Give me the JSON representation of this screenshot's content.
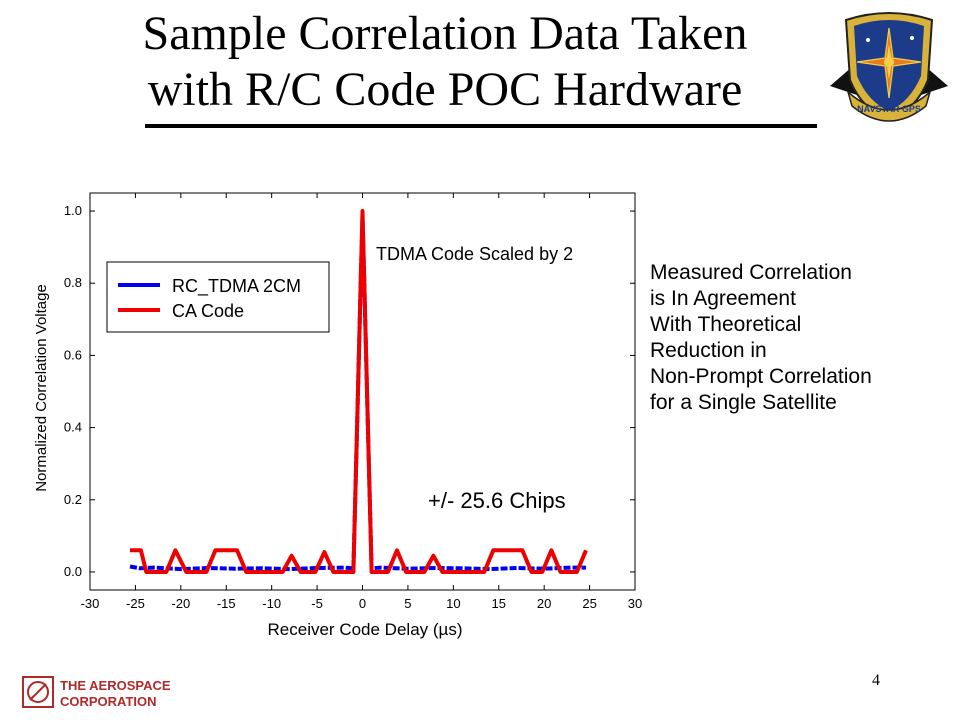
{
  "slide": {
    "title_line1": "Sample Correlation Data Taken",
    "title_line2": "with R/C Code POC Hardware",
    "side_note": [
      "Measured Correlation",
      "is In Agreement",
      "With Theoretical",
      "Reduction in",
      "Non-Prompt Correlation",
      "for a Single Satellite"
    ],
    "slide_number": "4",
    "emblem_text": "NAVSTAR GPS",
    "footer_logo": {
      "line1": "THE AEROSPACE",
      "line2": "CORPORATION"
    }
  },
  "colors": {
    "rc_tdma": "#0000ee",
    "ca_code": "#ee0000",
    "emblem_shield": "#1c3c8a",
    "emblem_gold": "#d8b23a",
    "logo_red": "#b02a2a"
  },
  "chart_data": {
    "type": "line",
    "xlabel": "Receiver Code Delay (µs)",
    "ylabel": "Normalized Correlation Voltage",
    "xlim": [
      -30,
      30
    ],
    "ylim": [
      -0.05,
      1.05
    ],
    "xticks": [
      -30,
      -25,
      -20,
      -15,
      -10,
      -5,
      0,
      5,
      10,
      15,
      20,
      25,
      30
    ],
    "yticks": [
      0.0,
      0.2,
      0.4,
      0.6,
      0.8,
      1.0
    ],
    "ytick_labels": [
      "0.0",
      "0.2",
      "0.4",
      "0.6",
      "0.8",
      "1.0"
    ],
    "grid": false,
    "legend_position": "upper-left",
    "annotations": [
      {
        "text": "TDMA Code Scaled by 2",
        "x": 0.8,
        "y": 0.88
      },
      {
        "text": "+/- 25.6 Chips",
        "x": 3.9,
        "y": 0.16
      }
    ],
    "series": [
      {
        "name": "RC_TDMA 2CM",
        "color": "#0000ee",
        "x": [
          -25.6,
          -24.5,
          -23,
          -20,
          -17,
          -14,
          -11,
          -8,
          -5,
          -2,
          -1,
          -0.6,
          -0.2,
          0,
          0.2,
          0.6,
          1,
          2,
          5,
          8,
          11,
          14,
          17,
          20,
          23,
          24.6
        ],
        "y": [
          0.015,
          0.01,
          0.012,
          0.008,
          0.011,
          0.009,
          0.01,
          0.008,
          0.011,
          0.012,
          0.01,
          0.4,
          0.8,
          0.98,
          0.8,
          0.4,
          0.01,
          0.012,
          0.009,
          0.011,
          0.01,
          0.008,
          0.011,
          0.009,
          0.012,
          0.012
        ]
      },
      {
        "name": "CA Code",
        "color": "#ee0000",
        "x": [
          -25.6,
          -24.4,
          -23.8,
          -21.6,
          -20.6,
          -19.4,
          -17.2,
          -16.2,
          -13.8,
          -12.8,
          -8.8,
          -7.8,
          -6.8,
          -5.2,
          -4.2,
          -3.2,
          -1.0,
          0.0,
          1.0,
          2.8,
          3.8,
          4.8,
          6.8,
          7.8,
          8.8,
          13.4,
          14.4,
          17.6,
          18.6,
          19.8,
          20.8,
          21.8,
          23.6,
          24.6
        ],
        "y": [
          0.06,
          0.06,
          0.0,
          0.0,
          0.06,
          0.0,
          0.0,
          0.06,
          0.06,
          0.0,
          0.0,
          0.045,
          0.0,
          0.0,
          0.055,
          0.0,
          0.0,
          1.0,
          0.0,
          0.0,
          0.06,
          0.0,
          0.0,
          0.045,
          0.0,
          0.0,
          0.06,
          0.06,
          0.0,
          0.0,
          0.06,
          0.0,
          0.0,
          0.06
        ]
      }
    ]
  }
}
